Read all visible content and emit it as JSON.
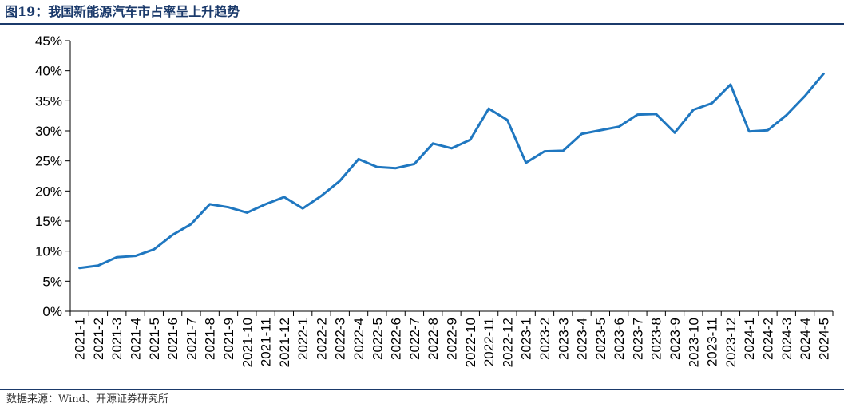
{
  "figure": {
    "title": "图19：我国新能源汽车市占率呈上升趋势",
    "source": "数据来源：Wind、开源证券研究所"
  },
  "colors": {
    "line": "#1f77c0",
    "axis": "#000000",
    "title": "#1b3a6b"
  },
  "chart_data": {
    "type": "line",
    "title": "",
    "xlabel": "",
    "ylabel": "",
    "grid": false,
    "legend": "none",
    "ylim": [
      0,
      45
    ],
    "yticks": [
      0,
      5,
      10,
      15,
      20,
      25,
      30,
      35,
      40,
      45
    ],
    "ytick_labels": [
      "0%",
      "5%",
      "10%",
      "15%",
      "20%",
      "25%",
      "30%",
      "35%",
      "40%",
      "45%"
    ],
    "categories": [
      "2021-1",
      "2021-2",
      "2021-3",
      "2021-4",
      "2021-5",
      "2021-6",
      "2021-7",
      "2021-8",
      "2021-9",
      "2021-10",
      "2021-11",
      "2021-12",
      "2022-1",
      "2022-2",
      "2022-3",
      "2022-4",
      "2022-5",
      "2022-6",
      "2022-7",
      "2022-8",
      "2022-9",
      "2022-10",
      "2022-11",
      "2022-12",
      "2023-1",
      "2023-2",
      "2023-3",
      "2023-4",
      "2023-5",
      "2023-6",
      "2023-7",
      "2023-8",
      "2023-9",
      "2023-10",
      "2023-11",
      "2023-12",
      "2024-1",
      "2024-2",
      "2024-3",
      "2024-4",
      "2024-5"
    ],
    "series": [
      {
        "values": [
          7.2,
          7.6,
          9.0,
          9.2,
          10.3,
          12.7,
          14.5,
          17.8,
          17.3,
          16.4,
          17.8,
          19.0,
          17.1,
          19.2,
          21.7,
          25.3,
          24.0,
          23.8,
          24.5,
          27.9,
          27.1,
          28.5,
          33.7,
          31.8,
          24.7,
          26.6,
          26.7,
          29.5,
          30.1,
          30.7,
          32.7,
          32.8,
          29.7,
          33.5,
          34.6,
          37.7,
          29.9,
          30.1,
          32.6,
          35.8,
          39.5
        ]
      }
    ]
  }
}
